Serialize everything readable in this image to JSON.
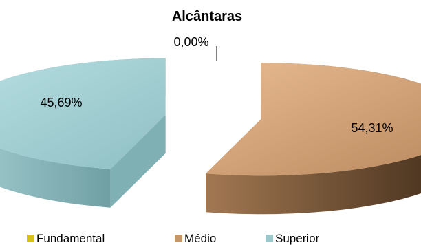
{
  "chart_data": {
    "type": "pie",
    "title": "Alcântaras",
    "categories": [
      "Fundamental",
      "Médio",
      "Superior"
    ],
    "values": [
      0.0,
      54.31,
      45.69
    ],
    "data_labels": [
      "0,00%",
      "54,31%",
      "45,69%"
    ],
    "colors": [
      "#d4c21a",
      "#c4966a",
      "#9cc8cc"
    ],
    "style": "3d-exploded",
    "legend_position": "bottom"
  }
}
